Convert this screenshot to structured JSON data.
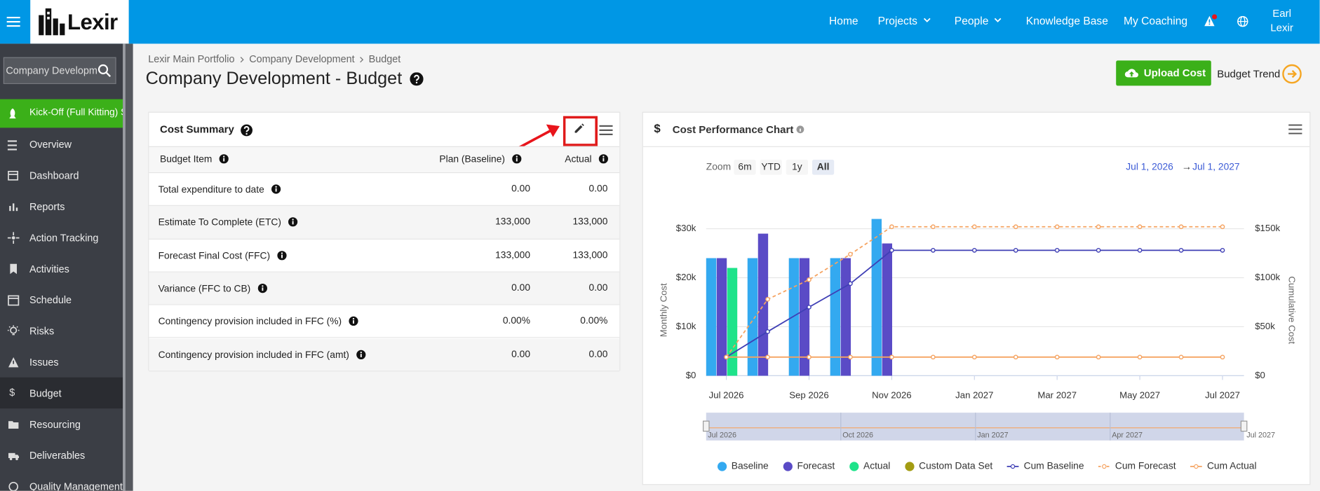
{
  "nav": {
    "logo": "Lexir",
    "links": [
      "Home",
      "Projects",
      "People",
      "Knowledge Base",
      "My Coaching"
    ],
    "user": [
      "Earl",
      "Lexir"
    ]
  },
  "sidebar": {
    "search": "Company Development",
    "project": "Kick-Off (Full Kitting) Se",
    "menu": [
      "Overview",
      "Dashboard",
      "Reports",
      "Action Tracking",
      "Activities",
      "Schedule",
      "Risks",
      "Issues",
      "Budget",
      "Resourcing",
      "Deliverables",
      "Quality Management"
    ]
  },
  "breadcrumb": [
    "Lexir Main Portfolio",
    "Company Development",
    "Budget"
  ],
  "header": {
    "title": "Company Development - Budget",
    "upload": "Upload Cost",
    "trend": "Budget Trend"
  },
  "cost_summary": {
    "title": "Cost Summary",
    "columns": [
      "Budget Item",
      "Plan (Baseline)",
      "Actual"
    ],
    "rows": [
      [
        "Total expenditure to date",
        "0.00",
        "0.00"
      ],
      [
        "Estimate To Complete (ETC)",
        "133,000",
        "133,000"
      ],
      [
        "Forecast Final Cost (FFC)",
        "133,000",
        "133,000"
      ],
      [
        "Variance (FFC to CB)",
        "0.00",
        "0.00"
      ],
      [
        "Contingency provision included in FFC (%)",
        "0.00%",
        "0.00%"
      ],
      [
        "Contingency provision included in FFC (amt)",
        "0.00",
        "0.00"
      ]
    ]
  },
  "chart_data": {
    "type": "combo",
    "icon": "$",
    "title": "Cost Performance Chart",
    "y_label": "Monthly Cost",
    "y2_label": "Cumulative Cost",
    "zoom": {
      "label": "Zoom",
      "buttons": [
        "6m",
        "YTD",
        "1y",
        "All"
      ],
      "selected": 3
    },
    "range": {
      "from": "Jul 1, 2026",
      "separator": "→",
      "to": "Jul 1, 2027"
    },
    "categories": [
      "Jul 2026",
      null,
      "Sep 2026",
      null,
      "Nov 2026",
      null,
      "Jan 2027",
      null,
      "Mar 2027",
      null,
      "May 2027",
      null,
      "Jul 2027"
    ],
    "series": [
      {
        "name": "Baseline",
        "type": "bar",
        "color": "#33a9f0",
        "values": [
          24000,
          24000,
          24000,
          24000,
          32000,
          null,
          null,
          null,
          null,
          null,
          null,
          null,
          null
        ]
      },
      {
        "name": "Forecast",
        "type": "bar",
        "color": "#5a4bc6",
        "values": [
          24000,
          29000,
          24000,
          24000,
          27000,
          null,
          null,
          null,
          null,
          null,
          null,
          null,
          null
        ]
      },
      {
        "name": "Actual",
        "type": "bar",
        "color": "#1ee38a",
        "values": [
          22000,
          null,
          null,
          null,
          null,
          null,
          null,
          null,
          null,
          null,
          null,
          null,
          null
        ]
      },
      {
        "name": "Custom Data Set",
        "type": "bar",
        "color": "#a39c12",
        "values": [
          null,
          null,
          null,
          null,
          null,
          null,
          null,
          null,
          null,
          null,
          null,
          null,
          null
        ]
      },
      {
        "name": "Cum Baseline",
        "type": "line",
        "axis": "y2",
        "color": "#3f3fb5",
        "dashed": false,
        "values": [
          19000,
          45000,
          70000,
          94000,
          128000,
          128000,
          128000,
          128000,
          128000,
          128000,
          128000,
          128000,
          128000
        ]
      },
      {
        "name": "Cum Forecast",
        "type": "line",
        "axis": "y2",
        "color": "#f5a361",
        "dashed": true,
        "values": [
          19000,
          78000,
          98000,
          124000,
          152000,
          152000,
          152000,
          152000,
          152000,
          152000,
          152000,
          152000,
          152000
        ]
      },
      {
        "name": "Cum Actual",
        "type": "line",
        "axis": "y2",
        "color": "#f5a361",
        "dashed": false,
        "values": [
          19000,
          19000,
          19000,
          19000,
          19000,
          19000,
          19000,
          19000,
          19000,
          19000,
          19000,
          19000,
          19000
        ]
      }
    ],
    "ylim": [
      0,
      35000
    ],
    "yticks": [
      {
        "value": 0,
        "label": "$0"
      },
      {
        "value": 10000,
        "label": "$10k"
      },
      {
        "value": 20000,
        "label": "$20k"
      },
      {
        "value": 30000,
        "label": "$30k"
      }
    ],
    "y2lim": [
      0,
      175000
    ],
    "y2ticks": [
      {
        "value": 0,
        "label": "$0"
      },
      {
        "value": 50000,
        "label": "$50k"
      },
      {
        "value": 100000,
        "label": "$100k"
      },
      {
        "value": 150000,
        "label": "$150k"
      }
    ],
    "grid": true,
    "navigator": [
      "Jul 2026",
      "Oct 2026",
      "Jan 2027",
      "Apr 2027",
      "Jul 2027"
    ]
  }
}
